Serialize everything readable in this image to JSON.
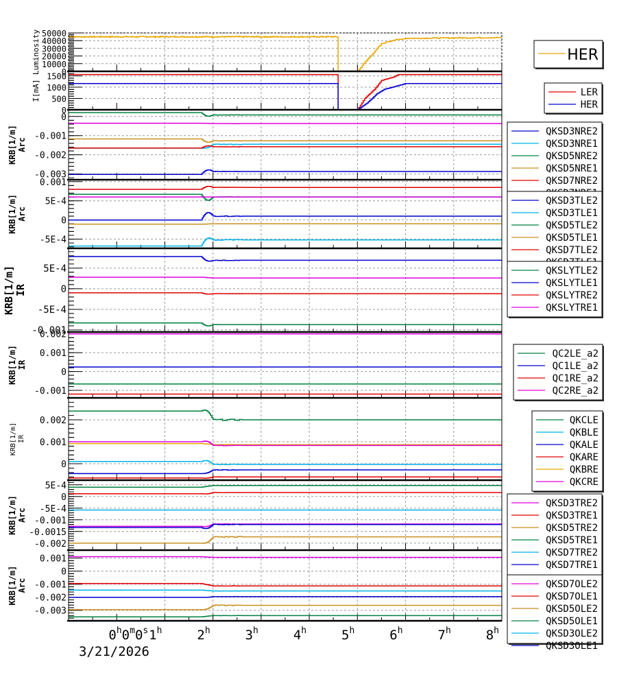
{
  "chart_data": {
    "type": "line",
    "title": "",
    "x_axis": {
      "unit": "hours",
      "range": [
        -1,
        8
      ],
      "tick_labels": [
        {
          "x": 0,
          "label": "0",
          "sup": "h",
          "extra": "0",
          "extra_sup": "m",
          "extra2": "0",
          "extra2_sup": "s"
        },
        {
          "x": 1,
          "label": "1",
          "sup": "h"
        },
        {
          "x": 2,
          "label": "2",
          "sup": "h"
        },
        {
          "x": 3,
          "label": "3",
          "sup": "h"
        },
        {
          "x": 4,
          "label": "4",
          "sup": "h"
        },
        {
          "x": 5,
          "label": "5",
          "sup": "h"
        },
        {
          "x": 6,
          "label": "6",
          "sup": "h"
        },
        {
          "x": 7,
          "label": "7",
          "sup": "h"
        },
        {
          "x": 8,
          "label": "8",
          "sup": "h"
        }
      ],
      "date_label": "3/21/2026",
      "grid": true
    },
    "panels": [
      {
        "id": "luminosity",
        "ylabel": [
          "Luminosity"
        ],
        "ylim": [
          0,
          50000
        ],
        "yticks": [
          0,
          10000,
          20000,
          30000,
          40000,
          50000
        ],
        "ytick_labels": [
          "0",
          "10000",
          "20000",
          "30000",
          "40000",
          "50000"
        ],
        "legend_large": true,
        "series": [
          {
            "name": "HER",
            "color": "#e8a800",
            "base": 45000,
            "noise": 600,
            "drop_at": 4.6,
            "recover": [
              [
                4.6,
                0
              ],
              [
                5.0,
                0
              ],
              [
                5.1,
                8000
              ],
              [
                5.3,
                22000
              ],
              [
                5.5,
                36000
              ],
              [
                5.7,
                40000
              ],
              [
                6.0,
                43000
              ],
              [
                8.0,
                44000
              ]
            ]
          }
        ]
      },
      {
        "id": "current",
        "ylabel": [
          "I[mA]"
        ],
        "ylim": [
          0,
          1700
        ],
        "yticks": [
          0,
          500,
          1000,
          1500
        ],
        "ytick_labels": [
          "0",
          "500",
          "1000",
          "1500"
        ],
        "series": [
          {
            "name": "LER",
            "color": "#e00000",
            "base": 1560,
            "drop_at": 4.6,
            "recover": [
              [
                4.6,
                0
              ],
              [
                5.0,
                0
              ],
              [
                5.15,
                500
              ],
              [
                5.35,
                900
              ],
              [
                5.5,
                1300
              ],
              [
                5.75,
                1450
              ],
              [
                5.85,
                1560
              ],
              [
                8.0,
                1560
              ]
            ]
          },
          {
            "name": "HER",
            "color": "#0000cc",
            "base": 1160,
            "drop_at": 4.6,
            "recover": [
              [
                4.6,
                0
              ],
              [
                5.0,
                0
              ],
              [
                5.2,
                300
              ],
              [
                5.4,
                700
              ],
              [
                5.55,
                900
              ],
              [
                5.9,
                1100
              ],
              [
                6.0,
                1160
              ],
              [
                8.0,
                1160
              ]
            ]
          }
        ]
      },
      {
        "id": "krb-arc-nre",
        "ylabel": [
          "KRB[1/m]",
          "Arc"
        ],
        "ylim": [
          -0.0033,
          0.00035
        ],
        "yticks": [
          -0.003,
          -0.002,
          -0.001,
          0
        ],
        "ytick_labels": [
          "-0.003",
          "-0.002",
          "-0.001",
          "0"
        ],
        "series": [
          {
            "name": "QKSD3NRE2",
            "color": "#0000cc",
            "before": -0.00302,
            "after": -0.00287,
            "kick": 0.00015
          },
          {
            "name": "QKSD3NRE1",
            "color": "#00b4e6",
            "before": -0.00165,
            "after": -0.00145,
            "kick": -8e-05
          },
          {
            "name": "QKSD5NRE2",
            "color": "#008040",
            "before": 0.0002,
            "after": 8e-05,
            "kick": -0.00012
          },
          {
            "name": "QKSD5NRE1",
            "color": "#c89020",
            "before": -0.00117,
            "after": -0.00127,
            "kick": -0.00012
          },
          {
            "name": "QKSD7NRE2",
            "color": "#e00000",
            "before": -0.00165,
            "after": -0.00158,
            "kick": 8e-05
          },
          {
            "name": "QKSD7NRE1",
            "color": "#e000e0",
            "before": -0.00035,
            "after": -0.00037,
            "kick": 0
          }
        ]
      },
      {
        "id": "krb-arc-tle",
        "ylabel": [
          "KRB[1/m]",
          "Arc"
        ],
        "ylim": [
          -0.00074,
          0.00105
        ],
        "yticks": [
          -0.0005,
          0,
          0.0005,
          0.001
        ],
        "ytick_labels": [
          "-5E-4",
          "0",
          "5E-4",
          "0.001"
        ],
        "series": [
          {
            "name": "QKSD3TLE2",
            "color": "#0000cc",
            "before": 0.0,
            "after": 0.0001,
            "kick": 0.00014
          },
          {
            "name": "QKSD3TLE1",
            "color": "#00b4e6",
            "before": -0.00068,
            "after": -0.00052,
            "kick": 0.00012
          },
          {
            "name": "QKSD5TLE2",
            "color": "#008040",
            "before": 0.00067,
            "after": 0.0006,
            "kick": -0.00012
          },
          {
            "name": "QKSD5TLE1",
            "color": "#c89020",
            "before": -0.00011,
            "after": -0.0001,
            "kick": 0
          },
          {
            "name": "QKSD7TLE2",
            "color": "#e00000",
            "before": 0.0008,
            "after": 0.00085,
            "kick": 5e-05
          },
          {
            "name": "QKSD7TLE1",
            "color": "#e000e0",
            "before": 0.0006,
            "after": 0.0006,
            "kick": 0
          }
        ]
      },
      {
        "id": "krb-ir-sly",
        "ylabel": [
          "KRB[1/m]",
          "IR"
        ],
        "ylim": [
          -0.00105,
          0.00098
        ],
        "yticks": [
          -0.001,
          -0.0005,
          0,
          0.0005
        ],
        "ytick_labels": [
          "-0.001",
          "-5E-4",
          "0",
          "5E-4"
        ],
        "big_label": true,
        "series": [
          {
            "name": "QKSLYTLE2",
            "color": "#008040",
            "before": -0.00083,
            "after": -0.00087,
            "kick": -5e-05
          },
          {
            "name": "QKSLYTLE1",
            "color": "#0000cc",
            "before": 0.00078,
            "after": 0.00069,
            "kick": -6e-05
          },
          {
            "name": "QKSLYTRE2",
            "color": "#e00000",
            "before": -0.0001,
            "after": -0.00012,
            "kick": -2e-05
          },
          {
            "name": "QKSLYTRE1",
            "color": "#e000e0",
            "before": 0.00028,
            "after": 0.00026,
            "kick": 0
          }
        ]
      },
      {
        "id": "krb-ir-qc",
        "ylabel": [
          "KRB[1/m]",
          "IR"
        ],
        "ylim": [
          -0.0014,
          0.0021
        ],
        "yticks": [
          -0.001,
          0,
          0.001,
          0.002
        ],
        "ytick_labels": [
          "-0.001",
          "0",
          "0.001",
          "0.002"
        ],
        "series": [
          {
            "name": "QC2LE_a2",
            "color": "#008040",
            "before": -0.00066,
            "after": -0.00066,
            "kick": 0
          },
          {
            "name": "QC1LE_a2",
            "color": "#0000cc",
            "before": 0.00024,
            "after": 0.00024,
            "kick": 0
          },
          {
            "name": "QC1RE_a2",
            "color": "#e00000",
            "before": -0.0012,
            "after": -0.0012,
            "kick": 0
          },
          {
            "name": "QC2RE_a2",
            "color": "#e000e0",
            "before": 0.002,
            "after": 0.002,
            "kick": 0
          }
        ]
      },
      {
        "id": "krb-ir-qk",
        "ylabel": [
          "KRB[1/m]",
          "IR"
        ],
        "ylim": [
          -0.00075,
          0.003
        ],
        "yticks": [
          0,
          0.001,
          0.002
        ],
        "ytick_labels": [
          "0",
          "0.001",
          "0.002"
        ],
        "small_label": true,
        "series": [
          {
            "name": "QKCLE",
            "color": "#008040",
            "before": 0.0024,
            "after": 0.002,
            "kick": 0.0002
          },
          {
            "name": "QKBLE",
            "color": "#00b4e6",
            "before": 0.0001,
            "after": -3e-05,
            "kick": 0.0001
          },
          {
            "name": "QKALE",
            "color": "#0000cc",
            "before": -0.00045,
            "after": -0.00028,
            "kick": -5e-05
          },
          {
            "name": "QKARE",
            "color": "#e00000",
            "before": -0.00065,
            "after": -0.0006,
            "kick": -3e-05
          },
          {
            "name": "QKBRE",
            "color": "#e8a800",
            "before": 0.00092,
            "after": 0.00087,
            "kick": 0
          },
          {
            "name": "QKCRE",
            "color": "#e000e0",
            "before": 0.001,
            "after": 0.00083,
            "kick": 0.0001
          }
        ]
      },
      {
        "id": "krb-arc-tre",
        "ylabel": [
          "KRB[1/m]",
          "Arc"
        ],
        "ylim": [
          -0.0023,
          0.0007
        ],
        "yticks": [
          -0.002,
          -0.0015,
          -0.001,
          -0.0005,
          0,
          0.0005
        ],
        "ytick_labels": [
          "-0.002",
          "-0.0015",
          "-0.001",
          "-5E-4",
          "0",
          "5E-4"
        ],
        "series": [
          {
            "name": "QKSD3TRE2",
            "color": "#e000e0",
            "before": -0.00128,
            "after": -0.00118,
            "kick": -5e-05
          },
          {
            "name": "QKSD3TRE1",
            "color": "#e00000",
            "before": 0.00012,
            "after": 0.00017,
            "kick": -3e-05
          },
          {
            "name": "QKSD5TRE2",
            "color": "#c89020",
            "before": -0.002,
            "after": -0.00173,
            "kick": -0.0001
          },
          {
            "name": "QKSD5TRE1",
            "color": "#008040",
            "before": 0.0004,
            "after": 0.00047,
            "kick": 0
          },
          {
            "name": "QKSD7TRE2",
            "color": "#00b4e6",
            "before": -0.00058,
            "after": -0.00058,
            "kick": 0
          },
          {
            "name": "QKSD7TRE1",
            "color": "#0000cc",
            "before": -0.00133,
            "after": -0.0012,
            "kick": -0.0001
          }
        ]
      },
      {
        "id": "krb-arc-ole",
        "ylabel": [
          "KRB[1/m]",
          "Arc"
        ],
        "ylim": [
          -0.0038,
          0.0016
        ],
        "yticks": [
          -0.003,
          -0.002,
          -0.001,
          0,
          0.001
        ],
        "ytick_labels": [
          "-0.003",
          "-0.002",
          "-0.001",
          "0",
          "0.001"
        ],
        "series": [
          {
            "name": "QKSD7OLE2",
            "color": "#e000e0",
            "before": 0.0011,
            "after": 0.00105,
            "kick": 0
          },
          {
            "name": "QKSD7OLE1",
            "color": "#e00000",
            "before": -0.00095,
            "after": -0.00113,
            "kick": 0
          },
          {
            "name": "QKSD5OLE2",
            "color": "#c89020",
            "before": -0.00295,
            "after": -0.00262,
            "kick": -0.0001
          },
          {
            "name": "QKSD5OLE1",
            "color": "#008040",
            "before": -0.0035,
            "after": -0.0034,
            "kick": 0
          },
          {
            "name": "QKSD3OLE2",
            "color": "#00b4e6",
            "before": -0.00145,
            "after": -0.00152,
            "kick": 0
          },
          {
            "name": "QKSD3OLE1",
            "color": "#0000cc",
            "before": -0.002,
            "after": -0.00195,
            "kick": -3e-05
          }
        ]
      }
    ]
  }
}
